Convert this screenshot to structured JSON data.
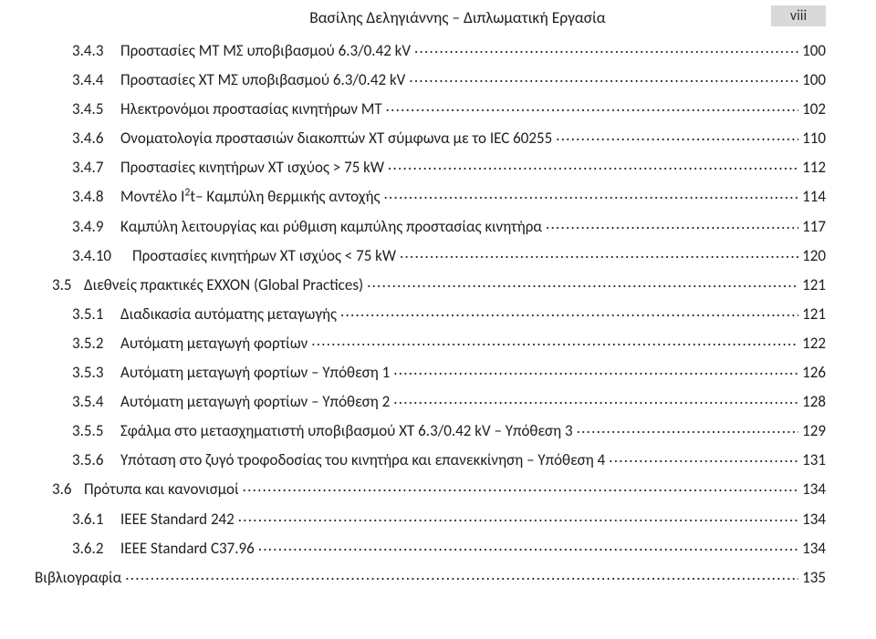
{
  "header": {
    "title": "Βασίλης Δεληγιάννης – Διπλωματική Εργασία",
    "page_roman": "viii"
  },
  "style": {
    "font_family": "Calibri, Arial, sans-serif",
    "font_size_body": 17,
    "font_size_header": 17.5,
    "background": "#ffffff",
    "text_color": "#202020",
    "pagenum_box_bg": "#d9d9d9"
  },
  "toc": [
    {
      "level": 3,
      "num": "3.4.3",
      "title": "Προστασίες ΜΤ ΜΣ υποβιβασμού 6.3/0.42 kV",
      "page": "100"
    },
    {
      "level": 3,
      "num": "3.4.4",
      "title": "Προστασίες ΧΤ  ΜΣ υποβιβασμού 6.3/0.42 kV",
      "page": "100"
    },
    {
      "level": 3,
      "num": "3.4.5",
      "title": "Ηλεκτρονόμοι προστασίας κινητήρων ΜΤ",
      "page": "102"
    },
    {
      "level": 3,
      "num": "3.4.6",
      "title": "Ονοματολογία προστασιών διακοπτών ΧΤ σύμφωνα με το IEC 60255",
      "page": "110"
    },
    {
      "level": 3,
      "num": "3.4.7",
      "title": "Προστασίες κινητήρων ΧΤ ισχύος > 75 kW",
      "page": "112"
    },
    {
      "level": 3,
      "num": "3.4.8",
      "title_html": "Μοντέλο I<sup>2</sup>t– Καμπύλη θερμικής αντοχής",
      "page": "114"
    },
    {
      "level": 3,
      "num": "3.4.9",
      "title": "Καμπύλη λειτουργίας και ρύθμιση καμπύλης προστασίας κινητήρα",
      "page": "117"
    },
    {
      "level": "2b",
      "num": "3.4.10",
      "title": "Προστασίες κινητήρων ΧΤ ισχύος < 75 kW",
      "page": "120"
    },
    {
      "level": 2,
      "num": "3.5",
      "title": "Διεθνείς πρακτικές EXXON (Global Practices)",
      "page": "121"
    },
    {
      "level": 3,
      "num": "3.5.1",
      "title": "Διαδικασία αυτόματης μεταγωγής",
      "page": "121"
    },
    {
      "level": 3,
      "num": "3.5.2",
      "title": "Αυτόματη μεταγωγή φορτίων",
      "page": "122"
    },
    {
      "level": 3,
      "num": "3.5.3",
      "title": "Αυτόματη μεταγωγή φορτίων – Υπόθεση 1",
      "page": "126"
    },
    {
      "level": 3,
      "num": "3.5.4",
      "title": "Αυτόματη μεταγωγή φορτίων – Υπόθεση 2",
      "page": "128"
    },
    {
      "level": 3,
      "num": "3.5.5",
      "title": "Σφάλμα στο μετασχηματιστή υποβιβασμού ΧΤ 6.3/0.42 kV – Υπόθεση 3",
      "page": "129"
    },
    {
      "level": 3,
      "num": "3.5.6",
      "title": "Υπόταση στο ζυγό τροφοδοσίας του κινητήρα και επανεκκίνηση – Υπόθεση 4",
      "page": "131"
    },
    {
      "level": 2,
      "num": "3.6",
      "title": "Πρότυπα και κανονισμοί",
      "page": "134"
    },
    {
      "level": 3,
      "num": "3.6.1",
      "title": "IEEE Standard 242",
      "page": "134"
    },
    {
      "level": 3,
      "num": "3.6.2",
      "title": "IEEE Standard C37.96",
      "page": "134"
    },
    {
      "level": 0,
      "num": "",
      "title": "Βιβλιογραφία",
      "page": "135"
    }
  ]
}
